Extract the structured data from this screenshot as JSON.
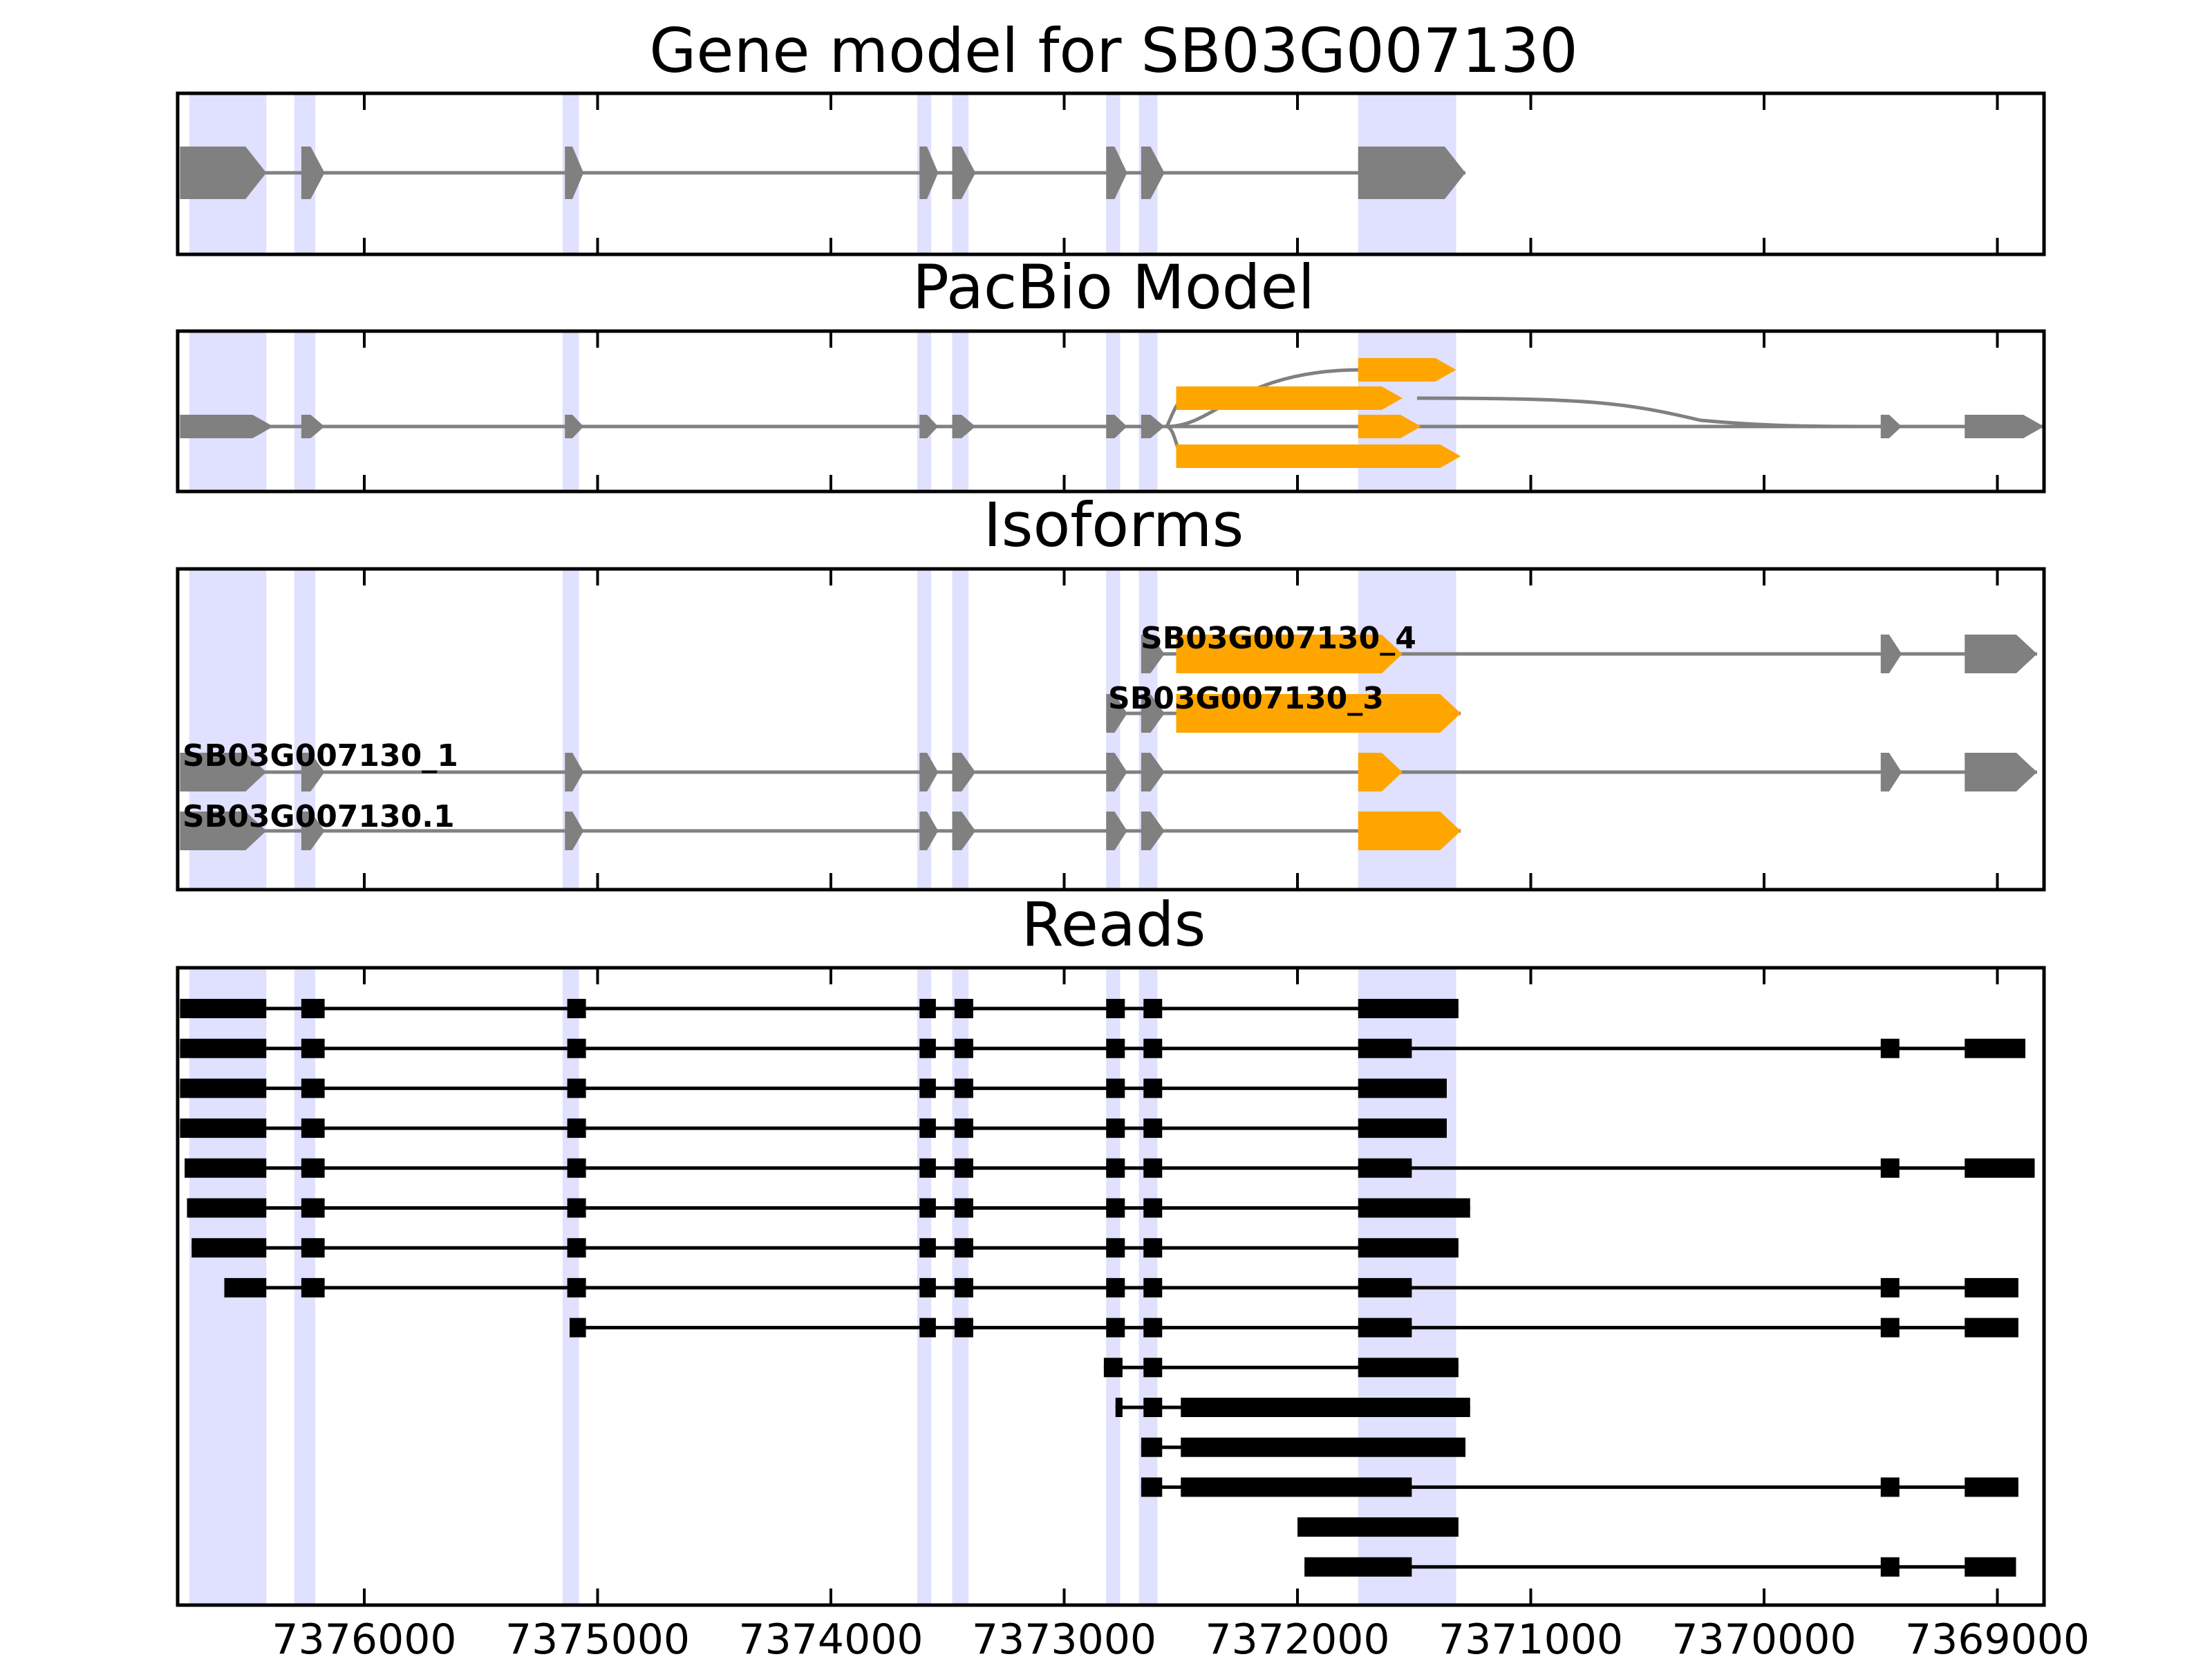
{
  "figure": {
    "panels": [
      {
        "id": "gene_model",
        "title": "Gene model for SB03G007130"
      },
      {
        "id": "pacbio",
        "title": "PacBio Model"
      },
      {
        "id": "isoforms",
        "title": "Isoforms"
      },
      {
        "id": "reads",
        "title": "Reads"
      }
    ],
    "x_axis": {
      "min": 7368800,
      "max": 7376800,
      "reversed": true,
      "ticks": [
        7376000,
        7375000,
        7374000,
        7373000,
        7372000,
        7371000,
        7370000,
        7369000
      ],
      "tick_labels": [
        "7376000",
        "7375000",
        "7374000",
        "7373000",
        "7372000",
        "7371000",
        "7370000",
        "7369000"
      ]
    },
    "colors": {
      "feature": "#808080",
      "alternative_feature": "#ffa500",
      "read": "#000000",
      "exon_highlight": "#e0e0ff",
      "frame": "#000000"
    },
    "highlight_regions": [
      [
        7376750,
        7376420
      ],
      [
        7376300,
        7376210
      ],
      [
        7375150,
        7375080
      ],
      [
        7373630,
        7373570
      ],
      [
        7373480,
        7373410
      ],
      [
        7372820,
        7372760
      ],
      [
        7372680,
        7372600
      ],
      [
        7371740,
        7371320
      ]
    ],
    "gene_model": {
      "models": [
        {
          "exons": [
            [
              7376790,
              7376420
            ],
            [
              7376270,
              7376170
            ],
            [
              7375140,
              7375060
            ],
            [
              7373620,
              7373540
            ],
            [
              7373480,
              7373380
            ],
            [
              7372820,
              7372730
            ],
            [
              7372670,
              7372570
            ],
            [
              7371740,
              7371280
            ]
          ],
          "color": "feature"
        }
      ]
    },
    "pacbio": {
      "models": [
        {
          "exons": [
            [
              7376790,
              7376390
            ],
            [
              7376270,
              7376170
            ],
            [
              7375140,
              7375060
            ],
            [
              7373620,
              7373540
            ],
            [
              7373480,
              7373380
            ],
            [
              7372820,
              7372730
            ],
            [
              7372670,
              7372570
            ],
            [
              7369500,
              7369410
            ],
            [
              7369140,
              7368800
            ]
          ],
          "color": "feature"
        },
        {
          "exons": [
            [
              7371740,
              7371320
            ]
          ],
          "color": "alternative_feature"
        },
        {
          "exons": [
            [
              7372520,
              7371550
            ]
          ],
          "color": "alternative_feature"
        },
        {
          "exons": [
            [
              7371740,
              7371470
            ]
          ],
          "color": "alternative_feature"
        },
        {
          "exons": [
            [
              7372520,
              7371300
            ]
          ],
          "color": "alternative_feature"
        }
      ]
    },
    "isoforms": {
      "labels": [
        "SB03G007130_4",
        "SB03G007130_3",
        "SB03G007130_1",
        "SB03G007130.1"
      ],
      "models": [
        {
          "label": "SB03G007130_4",
          "exons": [
            [
              7372670,
              7372570
            ],
            [
              7372520,
              7371550
            ],
            [
              7369500,
              7369410
            ],
            [
              7369140,
              7368830
            ]
          ],
          "colors": [
            "feature",
            "alternative_feature",
            "feature",
            "feature"
          ]
        },
        {
          "label": "SB03G007130_3",
          "exons": [
            [
              7372820,
              7372730
            ],
            [
              7372670,
              7372570
            ],
            [
              7372520,
              7371300
            ]
          ],
          "colors": [
            "feature",
            "feature",
            "alternative_feature"
          ]
        },
        {
          "label": "SB03G007130_1",
          "exons": [
            [
              7376790,
              7376420
            ],
            [
              7376270,
              7376170
            ],
            [
              7375140,
              7375060
            ],
            [
              7373620,
              7373540
            ],
            [
              7373480,
              7373380
            ],
            [
              7372820,
              7372730
            ],
            [
              7372670,
              7372570
            ],
            [
              7371740,
              7371550
            ],
            [
              7369500,
              7369410
            ],
            [
              7369140,
              7368830
            ]
          ],
          "colors": [
            "feature",
            "feature",
            "feature",
            "feature",
            "feature",
            "feature",
            "feature",
            "alternative_feature",
            "feature",
            "feature"
          ]
        },
        {
          "label": "SB03G007130.1",
          "exons": [
            [
              7376790,
              7376420
            ],
            [
              7376270,
              7376170
            ],
            [
              7375140,
              7375060
            ],
            [
              7373620,
              7373540
            ],
            [
              7373480,
              7373380
            ],
            [
              7372820,
              7372730
            ],
            [
              7372670,
              7372570
            ],
            [
              7371740,
              7371300
            ]
          ],
          "colors": [
            "feature",
            "feature",
            "feature",
            "feature",
            "feature",
            "feature",
            "feature",
            "alternative_feature"
          ]
        }
      ]
    },
    "reads": [
      [
        [
          7376790,
          7376420
        ],
        [
          7376270,
          7376170
        ],
        [
          7375130,
          7375050
        ],
        [
          7373620,
          7373550
        ],
        [
          7373470,
          7373390
        ],
        [
          7372820,
          7372740
        ],
        [
          7372660,
          7372580
        ],
        [
          7371740,
          7371310
        ]
      ],
      [
        [
          7376790,
          7376420
        ],
        [
          7376270,
          7376170
        ],
        [
          7375130,
          7375050
        ],
        [
          7373620,
          7373550
        ],
        [
          7373470,
          7373390
        ],
        [
          7372820,
          7372740
        ],
        [
          7372660,
          7372580
        ],
        [
          7371740,
          7371510
        ],
        [
          7369500,
          7369420
        ],
        [
          7369140,
          7368880
        ]
      ],
      [
        [
          7376790,
          7376420
        ],
        [
          7376270,
          7376170
        ],
        [
          7375130,
          7375050
        ],
        [
          7373620,
          7373550
        ],
        [
          7373470,
          7373390
        ],
        [
          7372820,
          7372740
        ],
        [
          7372660,
          7372580
        ],
        [
          7371740,
          7371360
        ]
      ],
      [
        [
          7376790,
          7376420
        ],
        [
          7376270,
          7376170
        ],
        [
          7375130,
          7375050
        ],
        [
          7373620,
          7373550
        ],
        [
          7373470,
          7373390
        ],
        [
          7372820,
          7372740
        ],
        [
          7372660,
          7372580
        ],
        [
          7371740,
          7371360
        ]
      ],
      [
        [
          7376770,
          7376420
        ],
        [
          7376270,
          7376170
        ],
        [
          7375130,
          7375050
        ],
        [
          7373620,
          7373550
        ],
        [
          7373470,
          7373390
        ],
        [
          7372820,
          7372740
        ],
        [
          7372660,
          7372580
        ],
        [
          7371740,
          7371510
        ],
        [
          7369500,
          7369420
        ],
        [
          7369140,
          7368840
        ]
      ],
      [
        [
          7376760,
          7376420
        ],
        [
          7376270,
          7376170
        ],
        [
          7375130,
          7375050
        ],
        [
          7373620,
          7373550
        ],
        [
          7373470,
          7373390
        ],
        [
          7372820,
          7372740
        ],
        [
          7372660,
          7372580
        ],
        [
          7371740,
          7371260
        ]
      ],
      [
        [
          7376740,
          7376420
        ],
        [
          7376270,
          7376170
        ],
        [
          7375130,
          7375050
        ],
        [
          7373620,
          7373550
        ],
        [
          7373470,
          7373390
        ],
        [
          7372820,
          7372740
        ],
        [
          7372660,
          7372580
        ],
        [
          7371740,
          7371310
        ]
      ],
      [
        [
          7376600,
          7376420
        ],
        [
          7376270,
          7376170
        ],
        [
          7375130,
          7375050
        ],
        [
          7373620,
          7373550
        ],
        [
          7373470,
          7373390
        ],
        [
          7372820,
          7372740
        ],
        [
          7372660,
          7372580
        ],
        [
          7371740,
          7371510
        ],
        [
          7369500,
          7369420
        ],
        [
          7369140,
          7368910
        ]
      ],
      [
        [
          7375120,
          7375050
        ],
        [
          7373620,
          7373550
        ],
        [
          7373470,
          7373390
        ],
        [
          7372820,
          7372740
        ],
        [
          7372660,
          7372580
        ],
        [
          7371740,
          7371510
        ],
        [
          7369500,
          7369420
        ],
        [
          7369140,
          7368910
        ]
      ],
      [
        [
          7372830,
          7372750
        ],
        [
          7372660,
          7372580
        ],
        [
          7371740,
          7371310
        ]
      ],
      [
        [
          7372780,
          7372750
        ],
        [
          7372660,
          7372580
        ],
        [
          7372500,
          7371260
        ]
      ],
      [
        [
          7372670,
          7372580
        ],
        [
          7372500,
          7371280
        ]
      ],
      [
        [
          7372670,
          7372580
        ],
        [
          7372500,
          7371510
        ],
        [
          7369500,
          7369420
        ],
        [
          7369140,
          7368910
        ]
      ],
      [
        [
          7372000,
          7371310
        ]
      ],
      [
        [
          7371970,
          7371510
        ],
        [
          7369500,
          7369420
        ],
        [
          7369140,
          7368920
        ]
      ]
    ]
  }
}
